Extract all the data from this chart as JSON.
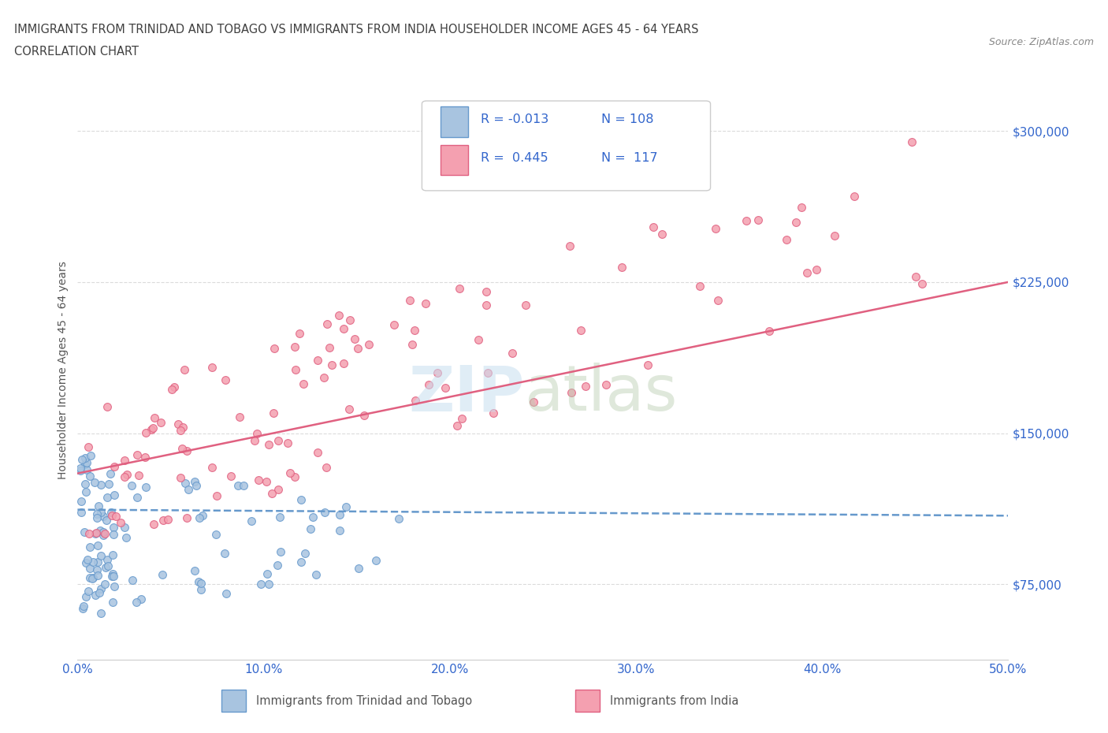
{
  "title_line1": "IMMIGRANTS FROM TRINIDAD AND TOBAGO VS IMMIGRANTS FROM INDIA HOUSEHOLDER INCOME AGES 45 - 64 YEARS",
  "title_line2": "CORRELATION CHART",
  "source_text": "Source: ZipAtlas.com",
  "ylabel": "Householder Income Ages 45 - 64 years",
  "xmin": 0.0,
  "xmax": 0.5,
  "ymin": 37500,
  "ymax": 325000,
  "yticks": [
    75000,
    150000,
    225000,
    300000
  ],
  "ytick_labels": [
    "$75,000",
    "$150,000",
    "$225,000",
    "$300,000"
  ],
  "xticks": [
    0.0,
    0.1,
    0.2,
    0.3,
    0.4,
    0.5
  ],
  "xtick_labels": [
    "0.0%",
    "10.0%",
    "20.0%",
    "30.0%",
    "40.0%",
    "50.0%"
  ],
  "series1_name": "Immigrants from Trinidad and Tobago",
  "series1_color": "#a8c4e0",
  "series1_edge_color": "#6699cc",
  "series1_R": -0.013,
  "series1_N": 108,
  "series1_line_color": "#6699cc",
  "series2_name": "Immigrants from India",
  "series2_color": "#f4a0b0",
  "series2_edge_color": "#e06080",
  "series2_R": 0.445,
  "series2_N": 117,
  "series2_line_color": "#e06080",
  "legend_R_color": "#3366cc",
  "background_color": "#ffffff",
  "grid_color": "#cccccc",
  "tick_label_color": "#3366cc",
  "title_color": "#404040",
  "trend1_x0": 0.0,
  "trend1_x1": 0.5,
  "trend1_y0": 112000,
  "trend1_y1": 109000,
  "trend2_x0": 0.0,
  "trend2_x1": 0.5,
  "trend2_y0": 130000,
  "trend2_y1": 225000
}
